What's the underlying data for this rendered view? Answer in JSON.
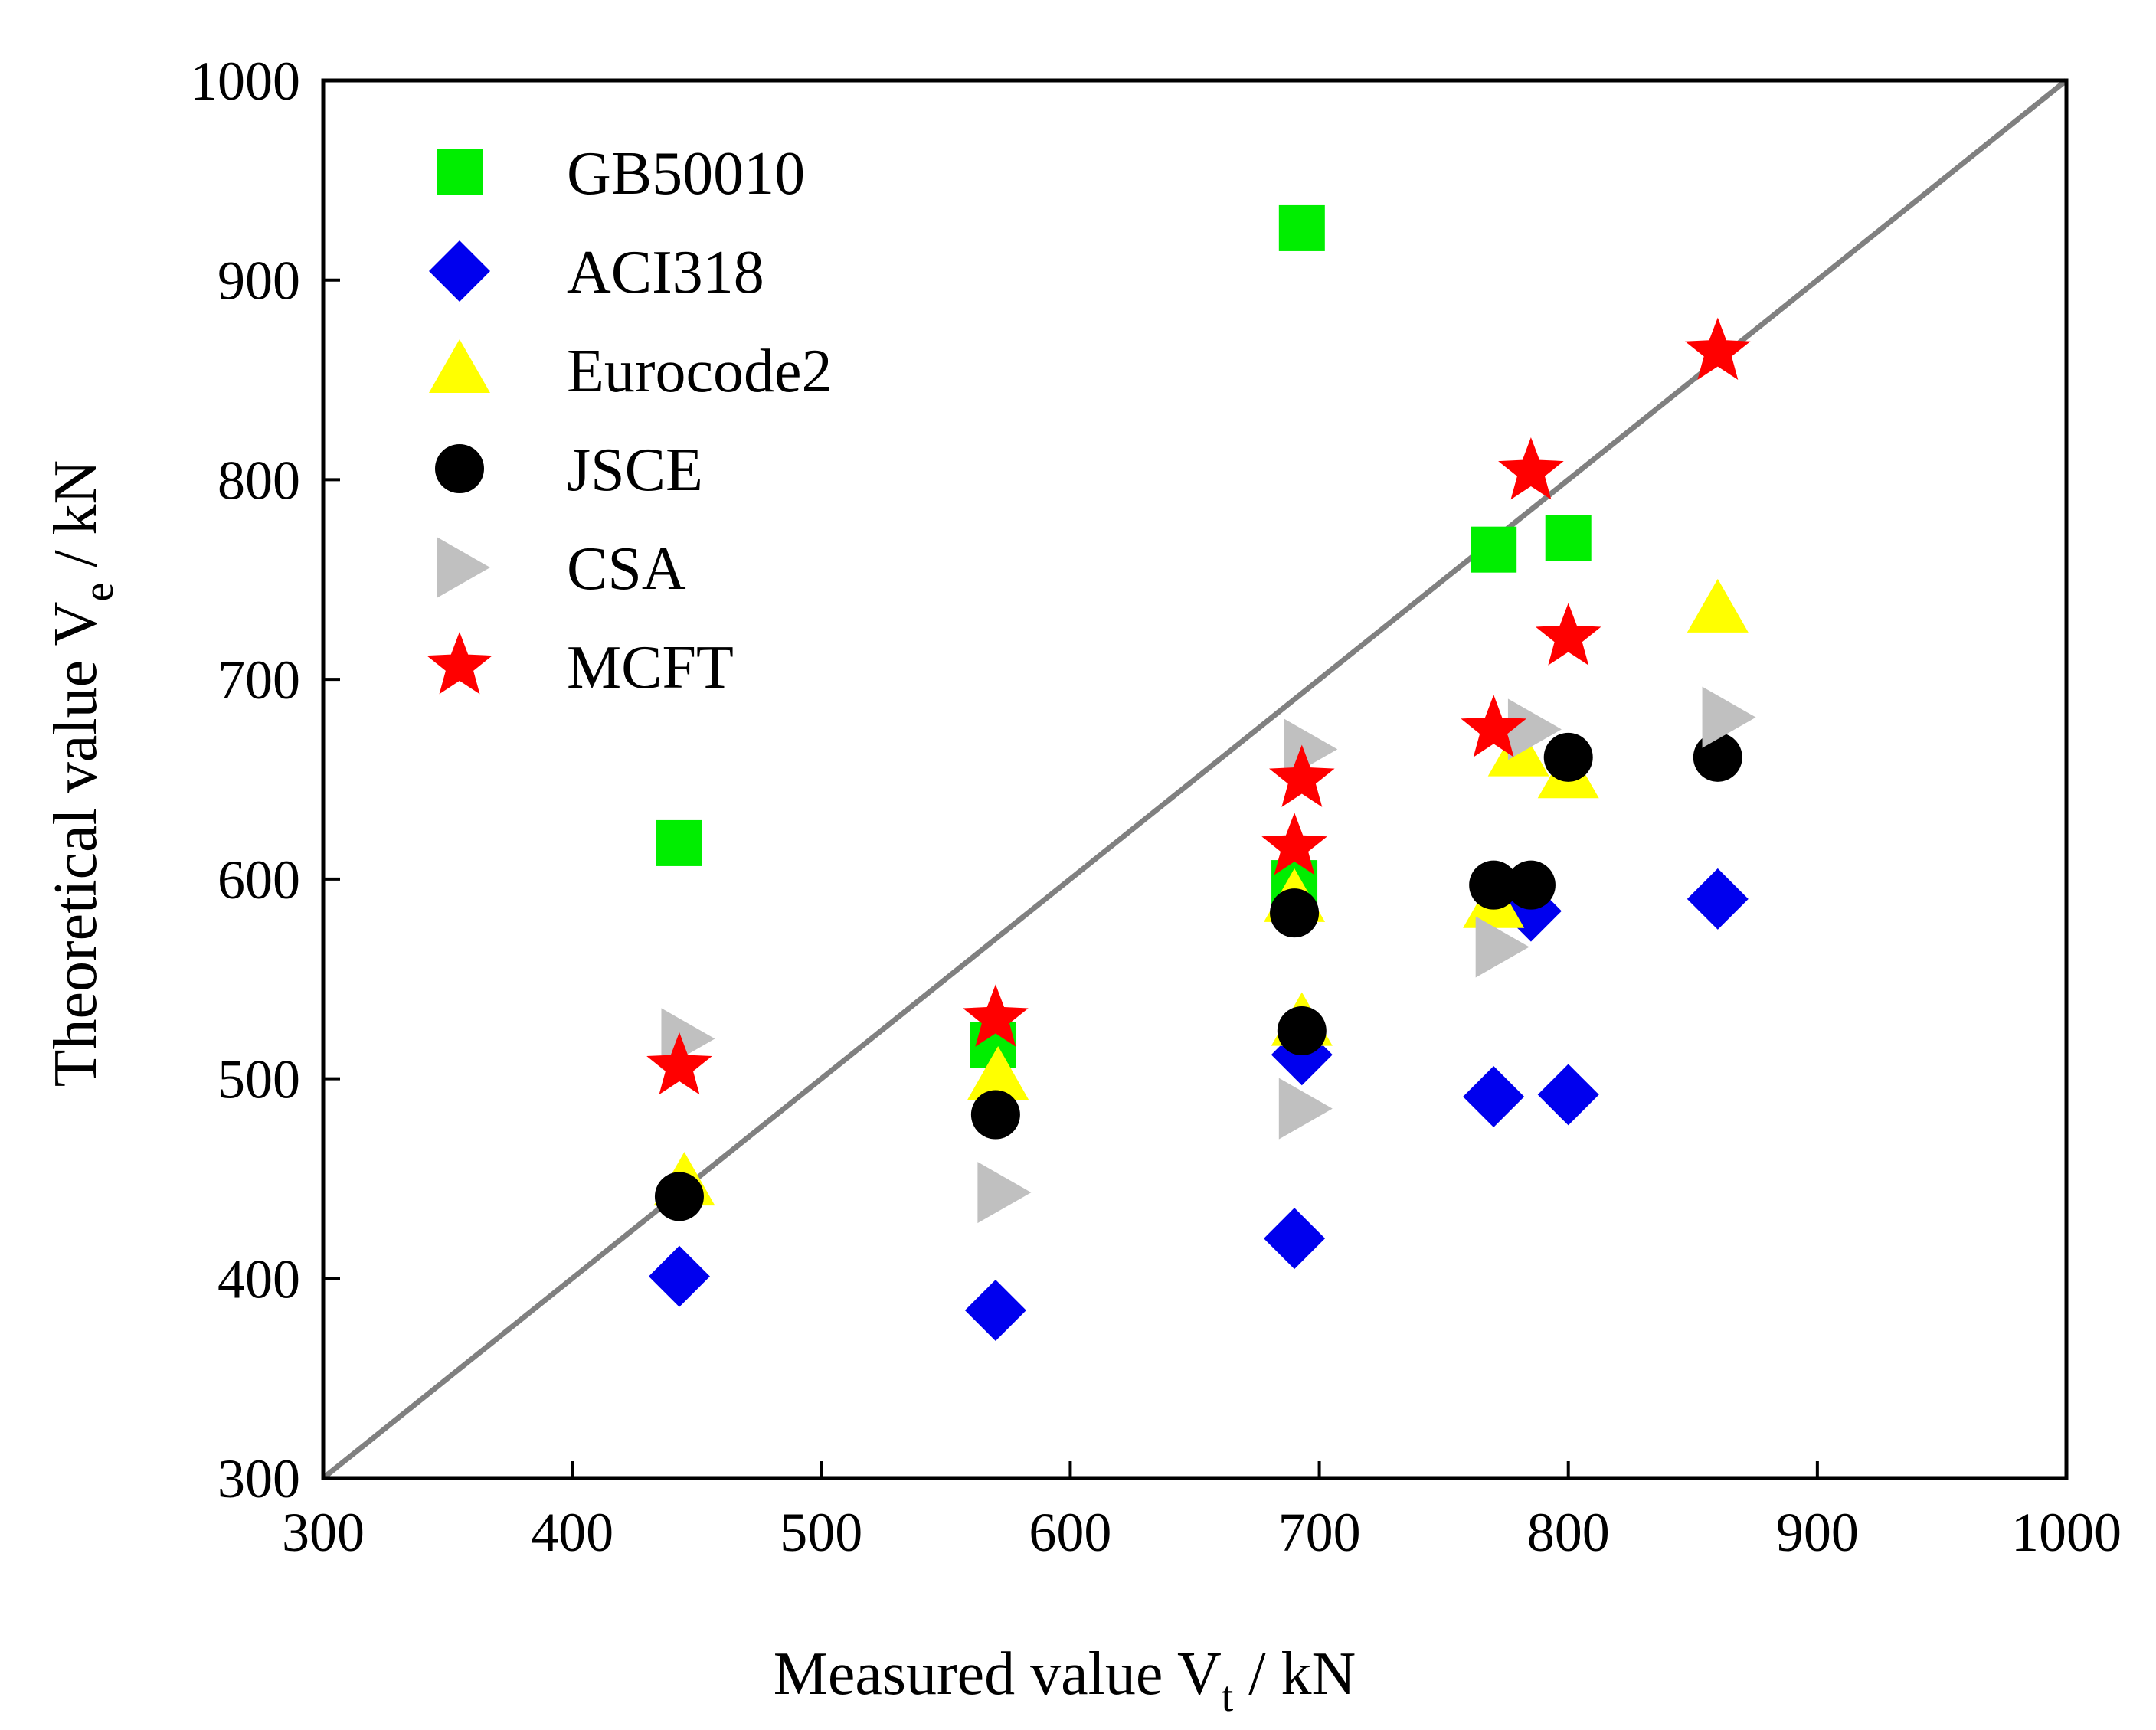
{
  "chart_data": {
    "type": "scatter",
    "xlabel": {
      "main": "Measured value V",
      "sub": "t",
      "unit": " / kN"
    },
    "ylabel": {
      "main": "Theoretical value V",
      "sub": "e",
      "unit": " / kN"
    },
    "xlim": [
      300,
      1000
    ],
    "ylim": [
      300,
      1000
    ],
    "xticks": [
      "300",
      "400",
      "500",
      "600",
      "700",
      "800",
      "900",
      "1000"
    ],
    "yticks": [
      "300",
      "400",
      "500",
      "600",
      "700",
      "800",
      "900",
      "1000"
    ],
    "grid": false,
    "legend_position": "top-left",
    "reference_line": {
      "from": [
        300,
        300
      ],
      "to": [
        1000,
        1000
      ],
      "color": "#808080"
    },
    "series": [
      {
        "name": "GB50010",
        "marker": "square",
        "color": "#00ee00",
        "points": [
          [
            443,
            618
          ],
          [
            569,
            517
          ],
          [
            690,
            598
          ],
          [
            693,
            926
          ],
          [
            770,
            765
          ],
          [
            800,
            771
          ]
        ]
      },
      {
        "name": "ACI318",
        "marker": "diamond",
        "color": "#0000ee",
        "points": [
          [
            443,
            401
          ],
          [
            570,
            384
          ],
          [
            690,
            420
          ],
          [
            693,
            512
          ],
          [
            770,
            491
          ],
          [
            785,
            584
          ],
          [
            800,
            492
          ],
          [
            860,
            590
          ]
        ]
      },
      {
        "name": "Eurocode2",
        "marker": "triangle-up",
        "color": "#ffff00",
        "points": [
          [
            445,
            448
          ],
          [
            571,
            501
          ],
          [
            690,
            590
          ],
          [
            693,
            528
          ],
          [
            770,
            587
          ],
          [
            780,
            663
          ],
          [
            800,
            652
          ],
          [
            860,
            735
          ]
        ]
      },
      {
        "name": "JSCE",
        "marker": "circle",
        "color": "#000000",
        "points": [
          [
            443,
            441
          ],
          [
            570,
            482
          ],
          [
            690,
            583
          ],
          [
            693,
            524
          ],
          [
            770,
            597
          ],
          [
            785,
            597
          ],
          [
            800,
            661
          ],
          [
            860,
            661
          ]
        ]
      },
      {
        "name": "CSA",
        "marker": "triangle-right",
        "color": "#c0c0c0",
        "points": [
          [
            445,
            520
          ],
          [
            572,
            443
          ],
          [
            693,
            485
          ],
          [
            695,
            665
          ],
          [
            772,
            566
          ],
          [
            785,
            675
          ],
          [
            863,
            681
          ]
        ]
      },
      {
        "name": "MCFT",
        "marker": "star",
        "color": "#ff0000",
        "points": [
          [
            443,
            506
          ],
          [
            570,
            530
          ],
          [
            690,
            616
          ],
          [
            693,
            650
          ],
          [
            770,
            675
          ],
          [
            785,
            804
          ],
          [
            800,
            721
          ],
          [
            860,
            864
          ]
        ]
      }
    ]
  }
}
